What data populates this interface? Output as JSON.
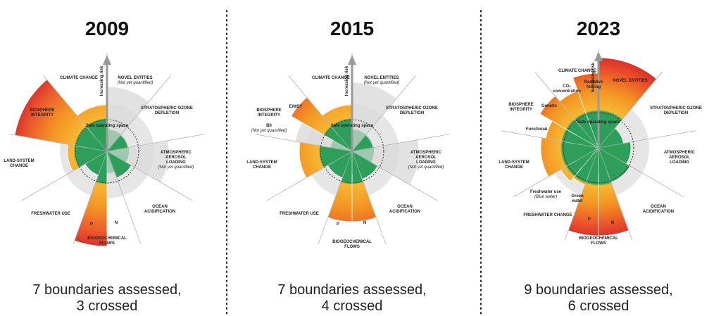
{
  "panels": [
    {
      "year": "2009",
      "caption": [
        "7 boundaries assessed,",
        "3 crossed"
      ],
      "labels": [
        [
          "CLIMATE CHANGE"
        ],
        [
          "NOVEL ENTITIES",
          "(Not yet quantified)"
        ],
        [
          "STRATOSPHERIC OZONE",
          "DEPLETION"
        ],
        [
          "BIOSPHERE",
          "INTEGRITY"
        ],
        [
          "LAND-SYSTEM",
          "CHANGE"
        ],
        [
          "ATMOSPHERIC",
          "AEROSOL",
          "LOADING",
          "(Not yet quantified)"
        ],
        [
          "OCEAN",
          "ACIDIFICATION"
        ],
        [
          "FRESHWATER USE"
        ],
        [
          "P"
        ],
        [
          "N"
        ],
        [
          "BIOGEOCHEMICAL",
          "FLOWS"
        ],
        [
          "Increasing risk"
        ],
        [
          "Safe operating space"
        ]
      ]
    },
    {
      "year": "2015",
      "caption": [
        "7 boundaries assessed,",
        "4 crossed"
      ],
      "labels": [
        [
          "CLIMATE CHANGE"
        ],
        [
          "NOVEL ENTITIES",
          "(Not yet quantified)"
        ],
        [
          "STRATOSPHERIC OZONE",
          "DEPLETION"
        ],
        [
          "BIOSPHERE",
          "INTEGRITY"
        ],
        [
          "E/MSY"
        ],
        [
          "BII",
          "(Not yet quantified)"
        ],
        [
          "LAND-SYSTEM",
          "CHANGE"
        ],
        [
          "ATMOSPHERIC",
          "AEROSOL",
          "LOADING",
          "(Not yet quantified)"
        ],
        [
          "OCEAN",
          "ACIDIFICATION"
        ],
        [
          "FRESHWATER USE"
        ],
        [
          "P"
        ],
        [
          "N"
        ],
        [
          "BIOGEOCHEMICAL",
          "FLOWS"
        ],
        [
          "Increasing risk"
        ],
        [
          "Safe operating space"
        ]
      ]
    },
    {
      "year": "2023",
      "caption": [
        "9 boundaries assessed,",
        "6 crossed"
      ],
      "labels": [
        [
          "CLIMATE CHANGE"
        ],
        [
          "CO₂",
          "concentration"
        ],
        [
          "Radiative",
          "forcing"
        ],
        [
          "NOVEL ENTITIES"
        ],
        [
          "STRATOSPHERIC OZONE",
          "DEPLETION"
        ],
        [
          "BIOSPHERE",
          "INTEGRITY"
        ],
        [
          "Genetic"
        ],
        [
          "Functional"
        ],
        [
          "LAND-SYSTEM",
          "CHANGE"
        ],
        [
          "ATMOSPHERIC",
          "AEROSOL",
          "LOADING"
        ],
        [
          "OCEAN",
          "ACIDIFICATION"
        ],
        [
          "Freshwater use",
          "(Blue water)"
        ],
        [
          "Green",
          "water"
        ],
        [
          "FRESHWATER CHANGE"
        ],
        [
          "P"
        ],
        [
          "N"
        ],
        [
          "BIOGEOCHEMICAL",
          "FLOWS"
        ],
        [
          "Increasing risk"
        ],
        [
          "Safe operating space"
        ]
      ]
    }
  ]
}
